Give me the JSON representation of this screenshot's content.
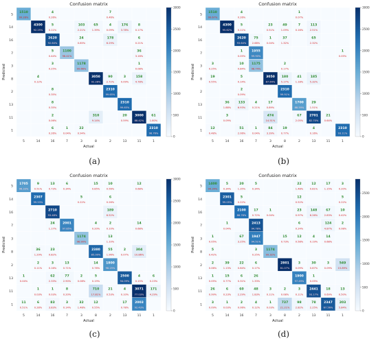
{
  "chart_data": [
    {
      "type": "heatmap",
      "label": "(a)",
      "title": "Confusion matrix",
      "xlabel": "Actual",
      "ylabel": "Predicted",
      "classes": [
        "5",
        "14",
        "16",
        "7",
        "3",
        "8",
        "2",
        "13",
        "11",
        "1"
      ],
      "colorbar_ticks": [
        0,
        500,
        1000,
        1500,
        2000,
        2500,
        3000
      ],
      "zlim": [
        0,
        3000
      ],
      "counts": [
        [
          1510,
          0,
          4,
          0,
          0,
          0,
          7,
          0,
          0,
          0
        ],
        [
          0,
          4300,
          5,
          0,
          103,
          65,
          4,
          176,
          8,
          0
        ],
        [
          0,
          0,
          2620,
          0,
          24,
          0,
          178,
          0,
          6,
          0
        ],
        [
          0,
          0,
          5,
          1100,
          0,
          0,
          0,
          0,
          36,
          0
        ],
        [
          0,
          0,
          3,
          0,
          1178,
          0,
          0,
          0,
          1,
          0
        ],
        [
          0,
          4,
          0,
          0,
          0,
          3050,
          90,
          3,
          158,
          0
        ],
        [
          0,
          0,
          8,
          0,
          0,
          0,
          2310,
          0,
          0,
          0
        ],
        [
          0,
          0,
          8,
          0,
          0,
          0,
          0,
          2310,
          0,
          0
        ],
        [
          0,
          0,
          2,
          0,
          0,
          310,
          0,
          20,
          3000,
          61
        ],
        [
          0,
          0,
          6,
          1,
          22,
          0,
          0,
          0,
          0,
          2310
        ]
      ]
    },
    {
      "type": "heatmap",
      "label": "(b)",
      "title": "Confusion matrix",
      "xlabel": "Actual",
      "ylabel": "Predicted",
      "classes": [
        "5",
        "14",
        "16",
        "7",
        "3",
        "8",
        "2",
        "13",
        "11",
        "1"
      ],
      "colorbar_ticks": [
        0,
        500,
        1000,
        1500,
        2000,
        2500,
        3000
      ],
      "zlim": [
        0,
        3000
      ],
      "counts": [
        [
          1510,
          0,
          4,
          0,
          0,
          0,
          1,
          0,
          0,
          0
        ],
        [
          0,
          4300,
          5,
          0,
          23,
          49,
          7,
          113,
          0,
          0
        ],
        [
          0,
          0,
          2620,
          75,
          1,
          37,
          0,
          65,
          0,
          0
        ],
        [
          0,
          0,
          1,
          1955,
          0,
          0,
          0,
          0,
          0,
          1
        ],
        [
          3,
          0,
          10,
          1175,
          0,
          2,
          0,
          0,
          0,
          0
        ],
        [
          19,
          0,
          5,
          0,
          3050,
          180,
          41,
          185,
          0,
          0
        ],
        [
          0,
          0,
          2,
          0,
          0,
          2310,
          0,
          0,
          0,
          0
        ],
        [
          0,
          36,
          133,
          4,
          17,
          0,
          1700,
          29,
          0,
          0
        ],
        [
          0,
          3,
          0,
          0,
          474,
          0,
          67,
          2701,
          21,
          0
        ],
        [
          12,
          0,
          51,
          1,
          84,
          19,
          0,
          4,
          0,
          2310
        ]
      ]
    },
    {
      "type": "heatmap",
      "label": "(c)",
      "title": "Confusion matrix",
      "xlabel": "Actual",
      "ylabel": "Predicted",
      "classes": [
        "5",
        "14",
        "16",
        "7",
        "3",
        "8",
        "2",
        "13",
        "11",
        "1"
      ],
      "colorbar_ticks": [
        0,
        500,
        1000,
        1500,
        2000,
        2500,
        3000
      ],
      "zlim": [
        0,
        3000
      ],
      "counts": [
        [
          1705,
          9,
          13,
          6,
          0,
          15,
          10,
          0,
          12,
          0
        ],
        [
          0,
          2307,
          0,
          0,
          5,
          0,
          6,
          0,
          0,
          0
        ],
        [
          0,
          0,
          2710,
          0,
          0,
          0,
          189,
          0,
          0,
          0
        ],
        [
          0,
          0,
          24,
          2001,
          0,
          4,
          2,
          0,
          14,
          0
        ],
        [
          0,
          0,
          0,
          0,
          1174,
          0,
          13,
          0,
          0,
          0
        ],
        [
          0,
          36,
          23,
          0,
          0,
          2380,
          55,
          2,
          304,
          0
        ],
        [
          0,
          2,
          3,
          13,
          0,
          14,
          1800,
          0,
          0,
          0
        ],
        [
          1,
          0,
          62,
          77,
          2,
          5,
          0,
          2500,
          4,
          6
        ],
        [
          0,
          1,
          1,
          8,
          0,
          710,
          21,
          4,
          3071,
          171
        ],
        [
          11,
          6,
          83,
          3,
          32,
          12,
          0,
          17,
          2003,
          0
        ]
      ]
    },
    {
      "type": "heatmap",
      "label": "(d)",
      "title": "Confusion matrix",
      "xlabel": "Actual",
      "ylabel": "Predicted",
      "classes": [
        "5",
        "14",
        "16",
        "7",
        "3",
        "8",
        "2",
        "13",
        "11",
        "1"
      ],
      "colorbar_ticks": [
        0,
        500,
        1000,
        1500,
        2000,
        2500
      ],
      "zlim": [
        0,
        2800
      ],
      "counts": [
        [
          1400,
          5,
          20,
          5,
          0,
          0,
          22,
          12,
          17,
          3
        ],
        [
          0,
          2301,
          5,
          0,
          0,
          0,
          12,
          0,
          0,
          5
        ],
        [
          0,
          0,
          2100,
          17,
          1,
          0,
          23,
          148,
          67,
          10
        ],
        [
          0,
          1,
          0,
          2413,
          0,
          0,
          6,
          0,
          124,
          2
        ],
        [
          1,
          0,
          67,
          1947,
          0,
          15,
          12,
          4,
          14,
          0
        ],
        [
          5,
          0,
          0,
          3,
          1174,
          0,
          0,
          0,
          0,
          0
        ],
        [
          2,
          39,
          22,
          6,
          0,
          2801,
          3,
          30,
          3,
          549
        ],
        [
          1,
          15,
          6,
          26,
          0,
          0,
          1900,
          1,
          0,
          0
        ],
        [
          26,
          6,
          60,
          48,
          3,
          2,
          3,
          2441,
          18,
          13
        ],
        [
          3,
          1,
          2,
          4,
          1,
          737,
          98,
          78,
          2347,
          203
        ]
      ]
    }
  ]
}
